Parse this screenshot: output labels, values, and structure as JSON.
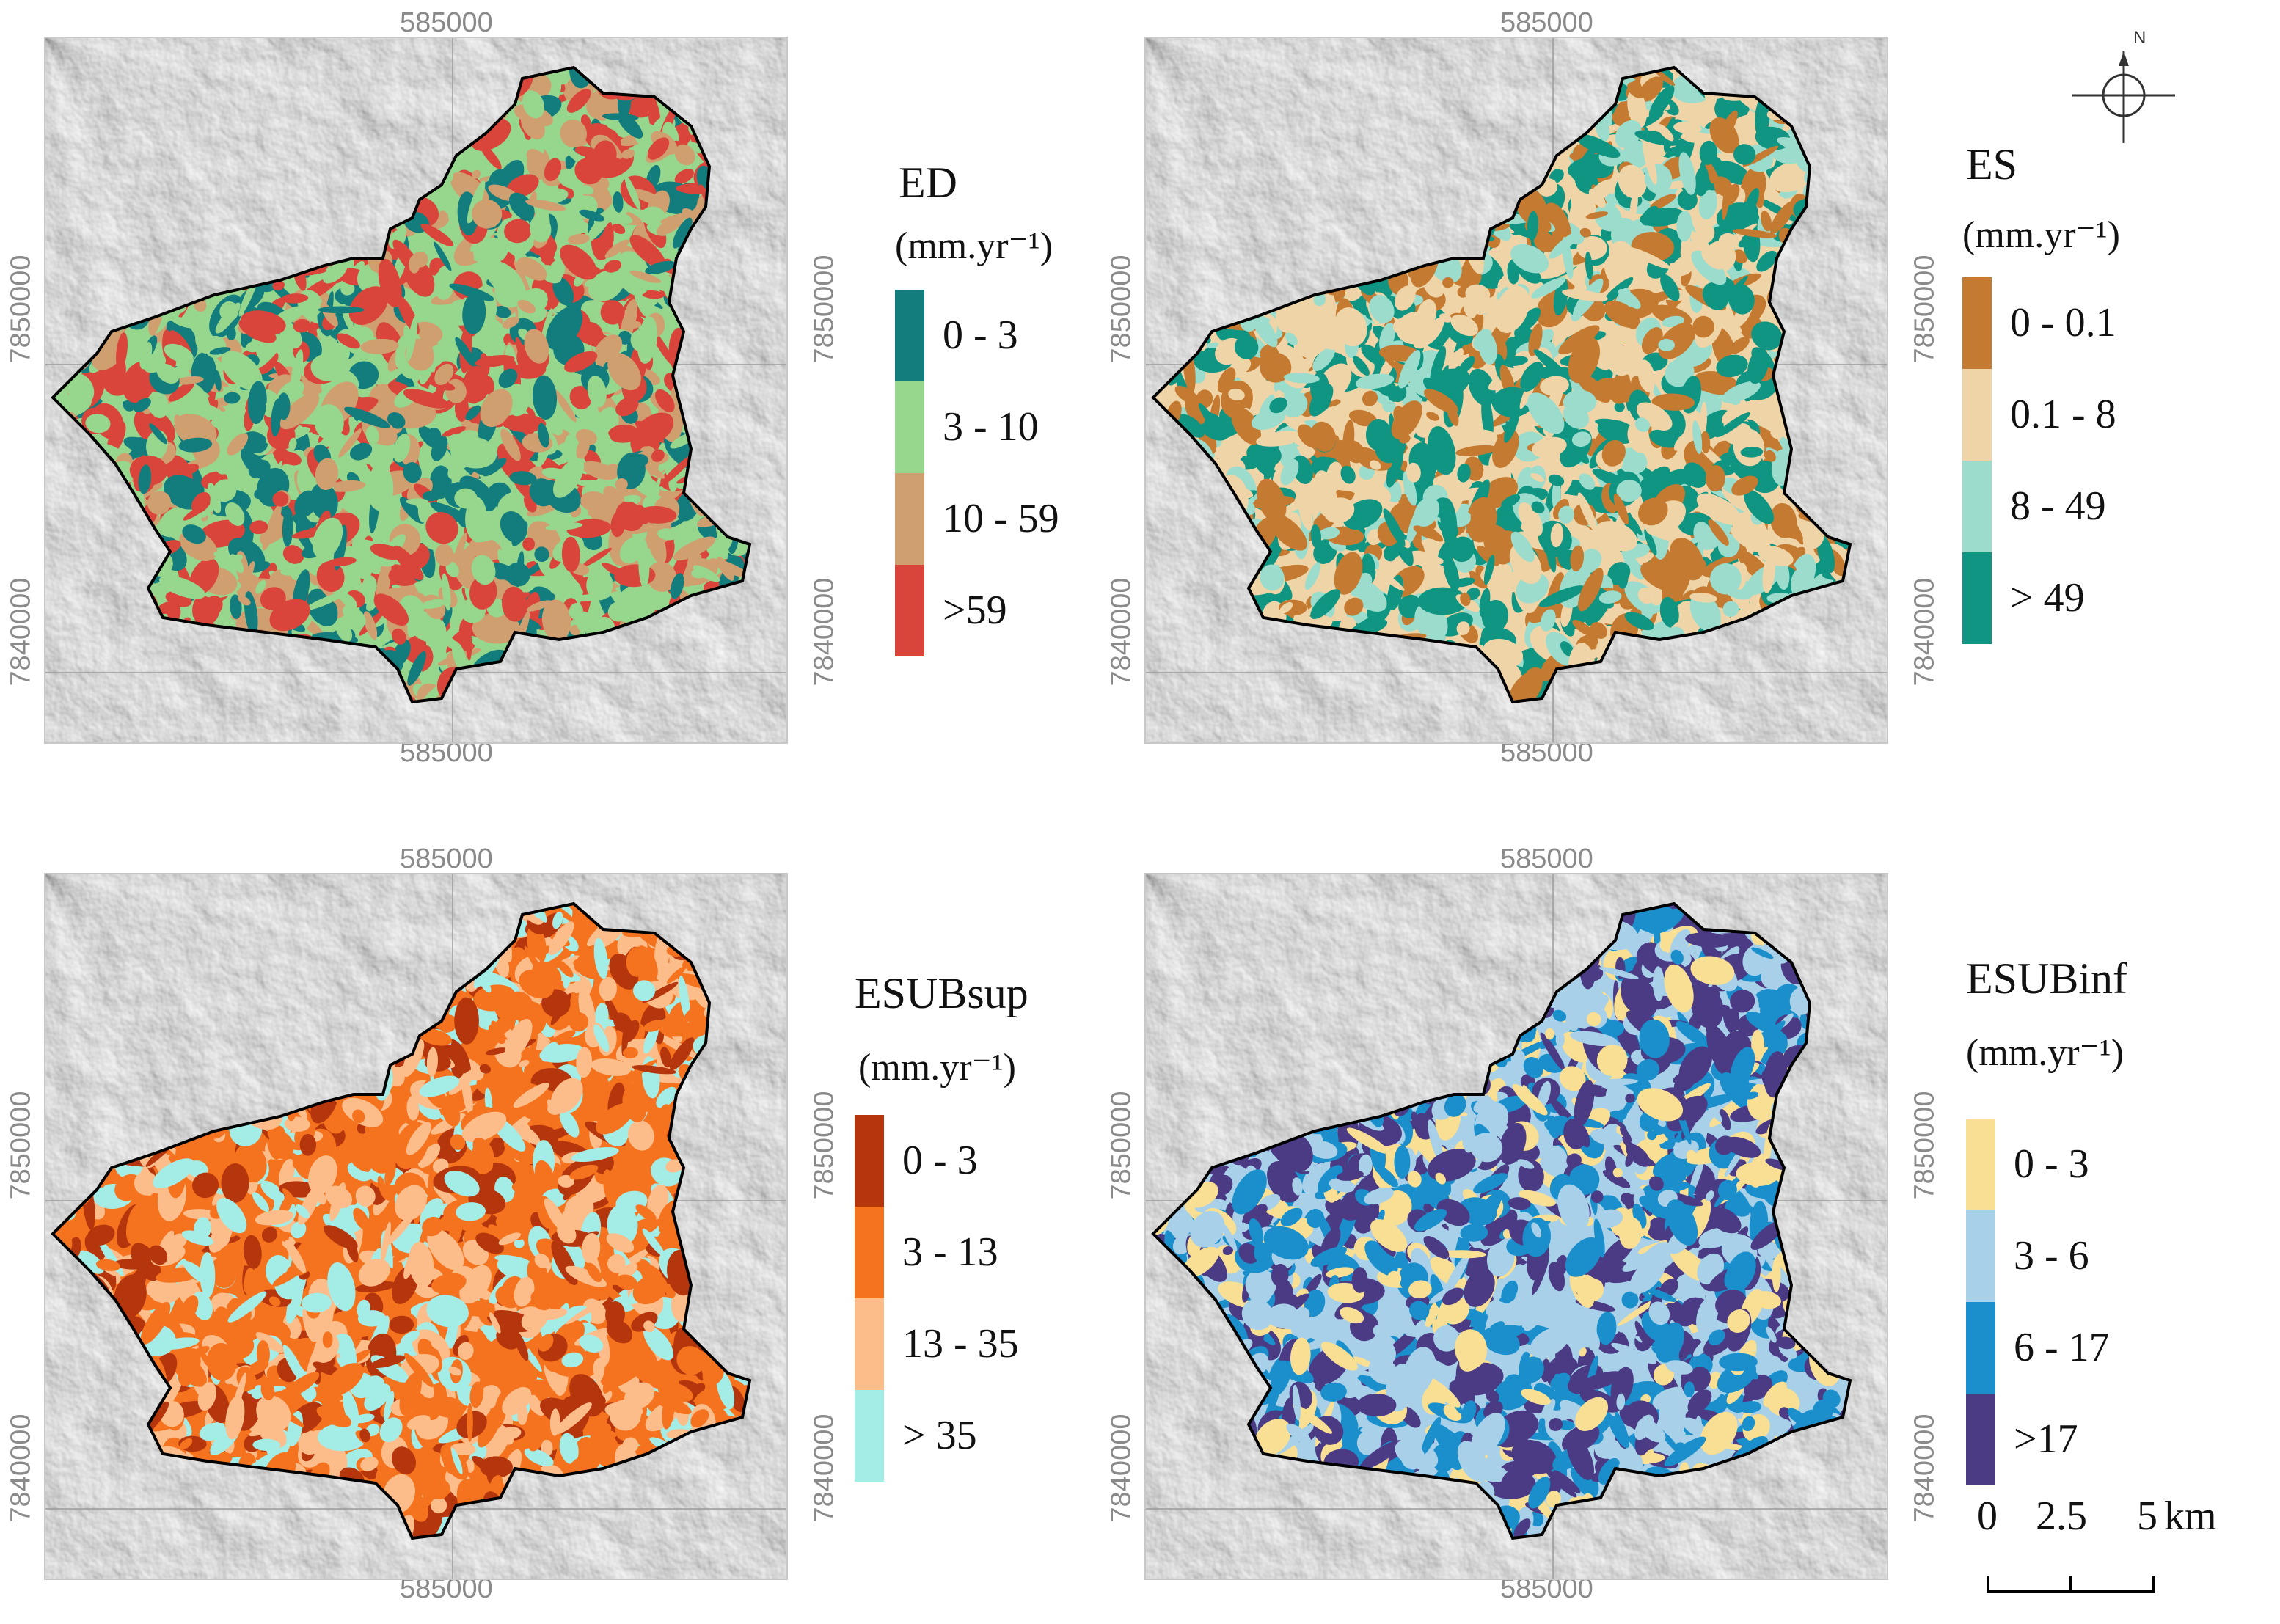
{
  "coordinates": {
    "easting": "585000",
    "northing_upper": "7850000",
    "northing_lower": "7840000"
  },
  "panels": [
    {
      "id": "ed",
      "title": "ED",
      "unit": "(mm.yr⁻¹)",
      "classes": [
        {
          "label": "0 - 3",
          "color": "#137c7c"
        },
        {
          "label": "3 - 10",
          "color": "#96d68d"
        },
        {
          "label": "10 - 59",
          "color": "#cf9f70"
        },
        {
          "label": ">59",
          "color": "#d9453a"
        }
      ]
    },
    {
      "id": "es",
      "title": "ES",
      "unit": "(mm.yr⁻¹)",
      "classes": [
        {
          "label": "0 - 0.1",
          "color": "#c47a30"
        },
        {
          "label": "0.1 - 8",
          "color": "#efd4a8"
        },
        {
          "label": "8 - 49",
          "color": "#9bdccc"
        },
        {
          "label": "> 49",
          "color": "#0f9582"
        }
      ]
    },
    {
      "id": "esubsup",
      "title": "ESUBsup",
      "unit": "(mm.yr⁻¹)",
      "classes": [
        {
          "label": "0 - 3",
          "color": "#b5350d"
        },
        {
          "label": "3 - 13",
          "color": "#f5731f"
        },
        {
          "label": "13 - 35",
          "color": "#fdbd8b"
        },
        {
          "label": "> 35",
          "color": "#a3ede6"
        }
      ]
    },
    {
      "id": "esubinf",
      "title": "ESUBinf",
      "unit": "(mm.yr⁻¹)",
      "classes": [
        {
          "label": "0 - 3",
          "color": "#f8df93"
        },
        {
          "label": "3 - 6",
          "color": "#a8d0e8"
        },
        {
          "label": "6 - 17",
          "color": "#1a8fcb"
        },
        {
          "label": ">17",
          "color": "#4b3b85"
        }
      ]
    }
  ],
  "north_arrow": {
    "label": "N",
    "icon": "north-arrow-icon"
  },
  "scale_bar": {
    "ticks": [
      "0",
      "2.5",
      "5"
    ],
    "unit": "km"
  }
}
